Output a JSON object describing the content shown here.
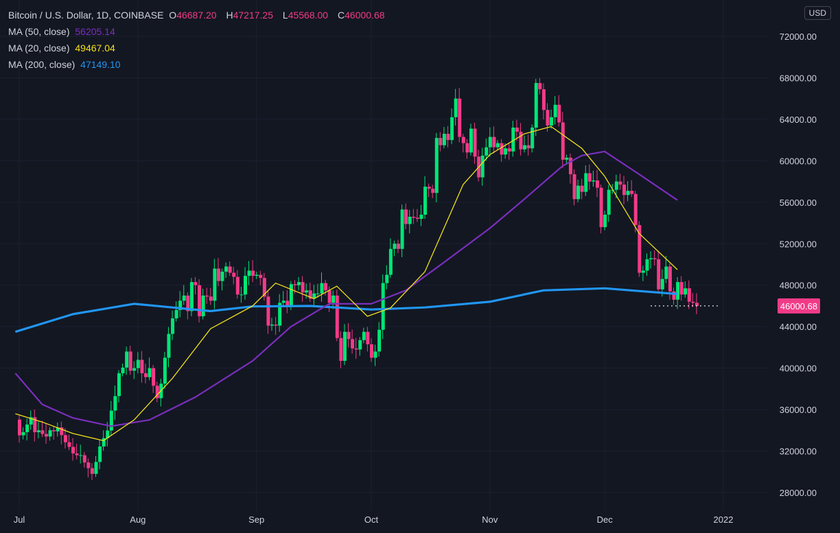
{
  "header": {
    "symbol": "Bitcoin / U.S. Dollar, 1D, COINBASE",
    "ohlc": [
      {
        "k": "O",
        "v": "46687.20"
      },
      {
        "k": "H",
        "v": "47217.25"
      },
      {
        "k": "L",
        "v": "45568.00"
      },
      {
        "k": "C",
        "v": "46000.68"
      }
    ],
    "indicators": [
      {
        "label": "MA (50, close)",
        "value": "56205.14",
        "color": "#7b2fbe"
      },
      {
        "label": "MA (20, close)",
        "value": "49467.04",
        "color": "#f2e11d"
      },
      {
        "label": "MA (200, close)",
        "value": "47149.10",
        "color": "#2196f3"
      }
    ]
  },
  "currency_button": "USD",
  "colors": {
    "background": "#131722",
    "up": "#00e676",
    "down": "#f23b88",
    "last_price_bg": "#f23b88",
    "axis_text": "#d1d4dc"
  },
  "chart_data": {
    "type": "candlestick",
    "title": "Bitcoin / U.S. Dollar, 1D, COINBASE",
    "y_axis": {
      "range": [
        26000,
        74000
      ],
      "ticks": [
        28000,
        32000,
        36000,
        40000,
        44000,
        48000,
        52000,
        56000,
        60000,
        64000,
        68000,
        72000
      ],
      "tick_labels": [
        "28000.00",
        "32000.00",
        "36000.00",
        "40000.00",
        "44000.00",
        "48000.00",
        "52000.00",
        "56000.00",
        "60000.00",
        "64000.00",
        "68000.00",
        "72000.00"
      ],
      "position": "right"
    },
    "x_axis": {
      "range": [
        "2021-06-30",
        "2022-01-06"
      ],
      "ticks": [
        {
          "date": "2021-07-01",
          "label": "Jul"
        },
        {
          "date": "2021-08-01",
          "label": "Aug"
        },
        {
          "date": "2021-09-01",
          "label": "Sep"
        },
        {
          "date": "2021-10-01",
          "label": "Oct"
        },
        {
          "date": "2021-11-01",
          "label": "Nov"
        },
        {
          "date": "2021-12-01",
          "label": "Dec"
        },
        {
          "date": "2022-01-01",
          "label": "2022"
        }
      ]
    },
    "close_series": {
      "start_date": "2021-06-30",
      "values": [
        35040,
        33520,
        33820,
        34560,
        35260,
        33820,
        34000,
        33650,
        33400,
        34010,
        33900,
        34280,
        33540,
        32850,
        32400,
        31770,
        31600,
        31600,
        30900,
        30350,
        29800,
        30950,
        32440,
        33250,
        33980,
        35900,
        37300,
        39500,
        40050,
        41600,
        39750,
        40000,
        40800,
        39500,
        39130,
        40000,
        38300,
        37100,
        38500,
        41000,
        43300,
        44800,
        45600,
        46500,
        47000,
        45500,
        48300,
        48000,
        45000,
        47000,
        46900,
        46500,
        49600,
        48400,
        49300,
        49800,
        49200,
        48800,
        47100,
        47100,
        48900,
        49400,
        48900,
        49000,
        48700,
        46900,
        44100,
        44200,
        44100,
        46300,
        46500,
        46000,
        48100,
        48000,
        48300,
        47300,
        47500,
        46700,
        47200,
        47200,
        48200,
        47500,
        46300,
        47000,
        42900,
        40700,
        43500,
        42800,
        41900,
        41800,
        42700,
        43500,
        42300,
        41000,
        41600,
        43700,
        48200,
        49000,
        51500,
        52000,
        51500,
        55300,
        53900,
        54600,
        54500,
        54400,
        54800,
        57500,
        57300,
        56900,
        62200,
        61500,
        62600,
        62000,
        64200,
        66000,
        62300,
        61700,
        60800,
        63100,
        60400,
        58400,
        60500,
        61300,
        62300,
        61300,
        61700,
        60600,
        61200,
        60900,
        63200,
        62800,
        61100,
        61500,
        61200,
        63200,
        67500,
        66900,
        64900,
        63400,
        64200,
        65400,
        63700,
        60100,
        60300,
        58700,
        56300,
        57600,
        57000,
        58800,
        58000,
        58100,
        57400,
        53600,
        54800,
        57200,
        57200,
        58000,
        57700,
        56700,
        57100,
        56800,
        53800,
        49200,
        49400,
        50500,
        50600,
        50500,
        47600,
        48600,
        49800,
        47400,
        46600,
        48300,
        47100,
        47700,
        46400,
        46300,
        46000
      ],
      "last_value": 46000.68
    },
    "series": [
      {
        "name": "MA (200, close)",
        "color": "#2196f3",
        "points": [
          [
            "2021-06-30",
            43500
          ],
          [
            "2021-07-15",
            45200
          ],
          [
            "2021-07-31",
            46200
          ],
          [
            "2021-08-20",
            45500
          ],
          [
            "2021-08-31",
            45950
          ],
          [
            "2021-09-15",
            46000
          ],
          [
            "2021-10-01",
            45650
          ],
          [
            "2021-10-15",
            45850
          ],
          [
            "2021-11-01",
            46400
          ],
          [
            "2021-11-15",
            47500
          ],
          [
            "2021-12-01",
            47700
          ],
          [
            "2021-12-20",
            47150
          ]
        ]
      },
      {
        "name": "MA (50, close)",
        "color": "#7b2fbe",
        "points": [
          [
            "2021-06-30",
            39500
          ],
          [
            "2021-07-07",
            36500
          ],
          [
            "2021-07-15",
            35200
          ],
          [
            "2021-07-25",
            34400
          ],
          [
            "2021-08-04",
            35000
          ],
          [
            "2021-08-16",
            37200
          ],
          [
            "2021-08-31",
            40700
          ],
          [
            "2021-09-10",
            44000
          ],
          [
            "2021-09-20",
            46200
          ],
          [
            "2021-10-01",
            46200
          ],
          [
            "2021-10-10",
            47500
          ],
          [
            "2021-10-20",
            50200
          ],
          [
            "2021-11-01",
            53500
          ],
          [
            "2021-11-10",
            56300
          ],
          [
            "2021-11-20",
            59500
          ],
          [
            "2021-11-25",
            60500
          ],
          [
            "2021-12-01",
            60900
          ],
          [
            "2021-12-10",
            58700
          ],
          [
            "2021-12-20",
            56200
          ]
        ]
      },
      {
        "name": "MA (20, close)",
        "color": "#f2e11d",
        "points": [
          [
            "2021-06-30",
            35600
          ],
          [
            "2021-07-07",
            34800
          ],
          [
            "2021-07-15",
            33700
          ],
          [
            "2021-07-23",
            33000
          ],
          [
            "2021-07-31",
            35000
          ],
          [
            "2021-08-10",
            39000
          ],
          [
            "2021-08-20",
            43800
          ],
          [
            "2021-08-31",
            46000
          ],
          [
            "2021-09-06",
            48200
          ],
          [
            "2021-09-16",
            46700
          ],
          [
            "2021-09-22",
            47900
          ],
          [
            "2021-09-30",
            45000
          ],
          [
            "2021-10-06",
            45800
          ],
          [
            "2021-10-15",
            49300
          ],
          [
            "2021-10-25",
            57700
          ],
          [
            "2021-11-01",
            60600
          ],
          [
            "2021-11-10",
            62600
          ],
          [
            "2021-11-17",
            63300
          ],
          [
            "2021-11-25",
            61200
          ],
          [
            "2021-12-01",
            58500
          ],
          [
            "2021-12-10",
            53000
          ],
          [
            "2021-12-20",
            49500
          ]
        ]
      }
    ],
    "reference_line": {
      "value": 46000.68,
      "style": "dotted",
      "label": "46000.68"
    }
  }
}
